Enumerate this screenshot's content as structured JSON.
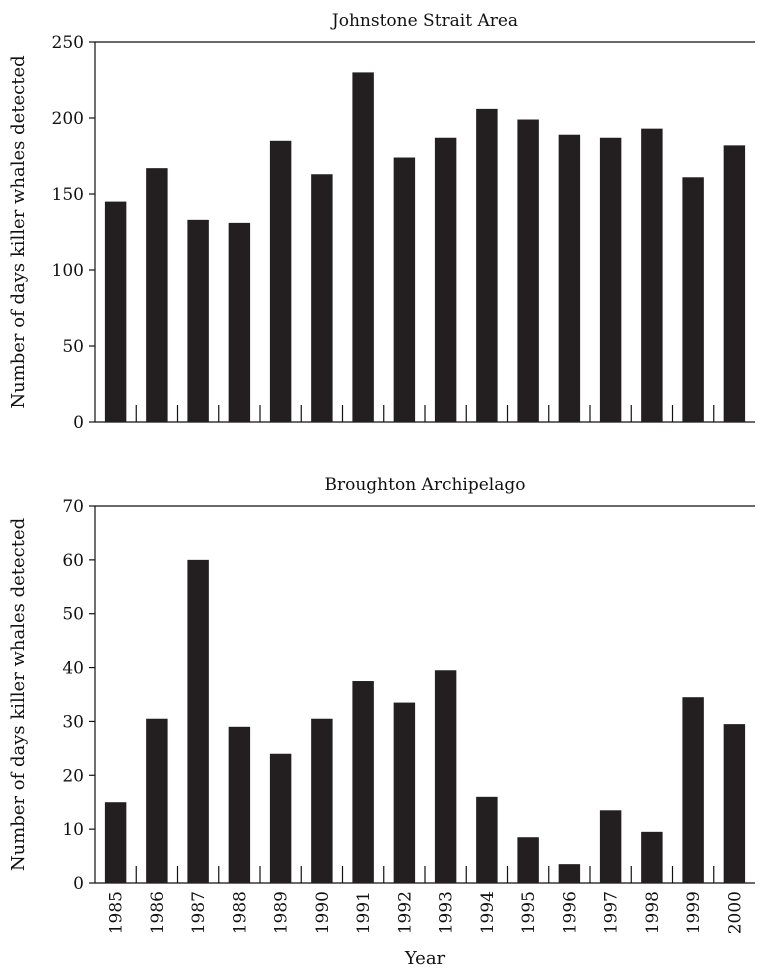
{
  "chart_data": [
    {
      "type": "bar",
      "title": "Johnstone Strait Area",
      "ylabel": "Number of days killer whales detected",
      "xlabel": "",
      "ylim": [
        0,
        250
      ],
      "yticks": [
        0,
        50,
        100,
        150,
        200,
        250
      ],
      "categories": [
        "1985",
        "1986",
        "1987",
        "1988",
        "1989",
        "1990",
        "1991",
        "1992",
        "1993",
        "1994",
        "1995",
        "1996",
        "1997",
        "1998",
        "1999",
        "2000"
      ],
      "values": [
        145,
        167,
        133,
        131,
        185,
        163,
        230,
        174,
        187,
        206,
        199,
        189,
        187,
        193,
        161,
        182
      ],
      "bar_color": "#231f20"
    },
    {
      "type": "bar",
      "title": "Broughton Archipelago",
      "ylabel": "Number of days killer whales detected",
      "xlabel": "Year",
      "ylim": [
        0,
        70
      ],
      "yticks": [
        0,
        10,
        20,
        30,
        40,
        50,
        60,
        70
      ],
      "categories": [
        "1985",
        "1986",
        "1987",
        "1988",
        "1989",
        "1990",
        "1991",
        "1992",
        "1993",
        "1994",
        "1995",
        "1996",
        "1997",
        "1998",
        "1999",
        "2000"
      ],
      "values": [
        15,
        30.5,
        60,
        29,
        24,
        30.5,
        37.5,
        33.5,
        39.5,
        16,
        8.5,
        3.5,
        13.5,
        9.5,
        34.5,
        29.5
      ],
      "bar_color": "#231f20"
    }
  ]
}
